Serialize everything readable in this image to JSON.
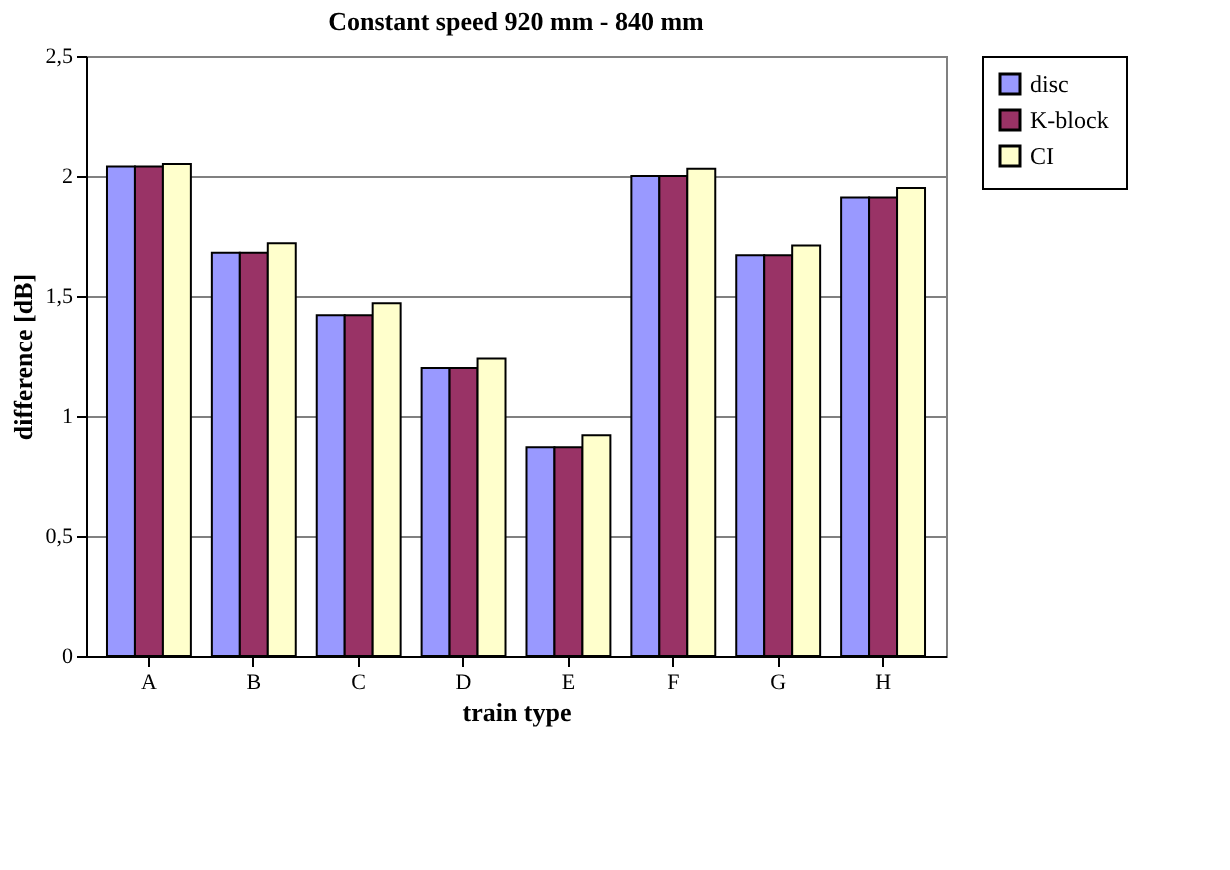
{
  "chart_data": {
    "type": "bar",
    "title": "Constant speed  920 mm - 840 mm",
    "xlabel": "train type",
    "ylabel": "difference [dB]",
    "categories": [
      "A",
      "B",
      "C",
      "D",
      "E",
      "F",
      "G",
      "H"
    ],
    "series": [
      {
        "name": "disc",
        "color": "#9999ff",
        "values": [
          2.04,
          1.68,
          1.42,
          1.2,
          0.87,
          2.0,
          1.67,
          1.91
        ]
      },
      {
        "name": "K-block",
        "color": "#993366",
        "values": [
          2.04,
          1.68,
          1.42,
          1.2,
          0.87,
          2.0,
          1.67,
          1.91
        ]
      },
      {
        "name": "CI",
        "color": "#ffffcc",
        "values": [
          2.05,
          1.72,
          1.47,
          1.24,
          0.92,
          2.03,
          1.71,
          1.95
        ]
      }
    ],
    "ylim": [
      0,
      2.5
    ],
    "yticks": [
      0,
      {
        "value": 0.5,
        "label": "0,5"
      },
      1,
      {
        "value": 1.5,
        "label": "1,5"
      },
      2,
      {
        "value": 2.5,
        "label": "2,5"
      }
    ],
    "grid": "y",
    "legend": "right"
  }
}
